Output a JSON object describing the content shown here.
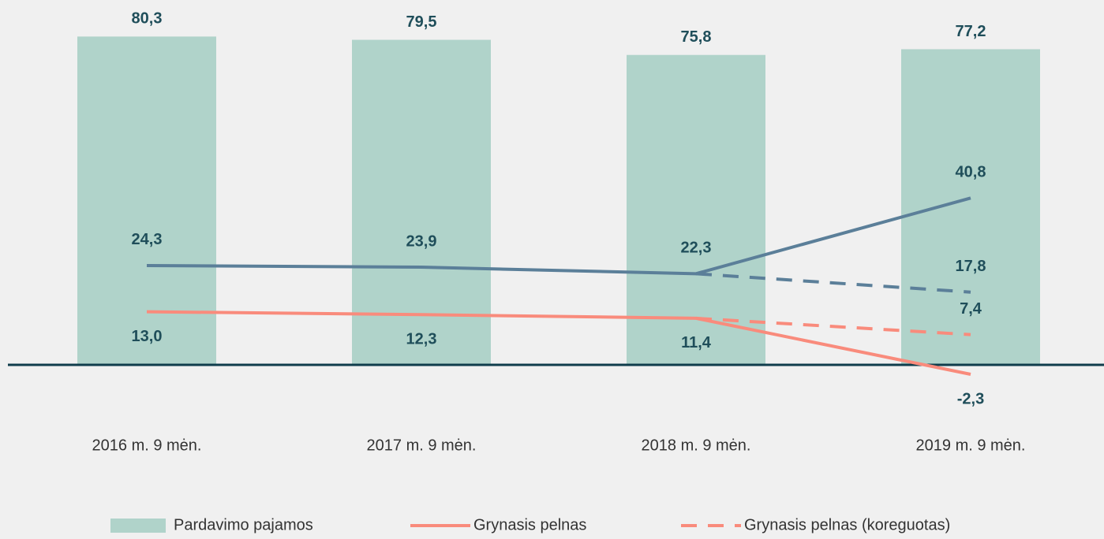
{
  "chart_data": {
    "type": "bar",
    "categories": [
      "2016 m. 9 mėn.",
      "2017 m. 9 mėn.",
      "2018 m. 9 mėn.",
      "2019 m. 9 mėn."
    ],
    "ylim": [
      -5,
      85
    ],
    "legend": "bottom",
    "series": [
      {
        "name": "Pardavimo pajamos",
        "type": "bar",
        "color": "#b0d3ca",
        "values": [
          80.3,
          79.5,
          75.8,
          77.2
        ],
        "value_labels": [
          "80,3",
          "79,5",
          "75,8",
          "77,2"
        ]
      },
      {
        "type": "line",
        "style": "solid",
        "color": "#5b7f99",
        "values": [
          24.3,
          23.9,
          22.3,
          40.8
        ],
        "value_labels": [
          "24,3",
          "23,9",
          "22,3",
          "40,8"
        ]
      },
      {
        "type": "line",
        "style": "dashed",
        "color": "#5b7f99",
        "values": [
          null,
          null,
          22.3,
          17.8
        ],
        "value_labels": [
          null,
          null,
          null,
          "17,8"
        ]
      },
      {
        "name": "Grynasis pelnas",
        "type": "line",
        "style": "solid",
        "color": "#f98b7c",
        "values": [
          13.0,
          12.3,
          11.4,
          -2.3
        ],
        "value_labels": [
          "13,0",
          "12,3",
          "11,4",
          "-2,3"
        ]
      },
      {
        "name": "Grynasis pelnas (koreguotas)",
        "type": "line",
        "style": "dashed",
        "color": "#f98b7c",
        "values": [
          null,
          null,
          11.4,
          7.4
        ],
        "value_labels": [
          null,
          null,
          null,
          "7,4"
        ]
      }
    ]
  }
}
